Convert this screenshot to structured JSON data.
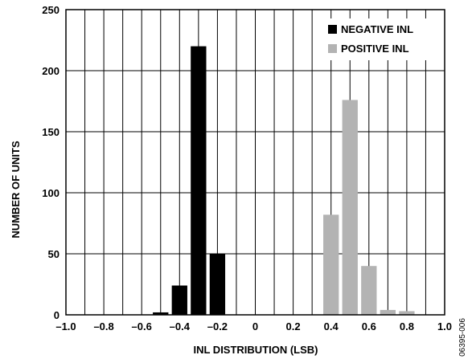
{
  "chart_data": {
    "type": "bar",
    "xlabel": "INL DISTRIBUTION (LSB)",
    "ylabel": "NUMBER OF UNITS",
    "xlim": [
      -1.0,
      1.0
    ],
    "ylim": [
      0,
      250
    ],
    "x_ticks": [
      -1.0,
      -0.8,
      -0.6,
      -0.4,
      -0.2,
      0,
      0.2,
      0.4,
      0.6,
      0.8,
      1.0
    ],
    "x_tick_labels": [
      "–1.0",
      "–0.8",
      "–0.6",
      "–0.4",
      "–0.2",
      "0",
      "0.2",
      "0.4",
      "0.6",
      "0.8",
      "1.0"
    ],
    "y_ticks": [
      0,
      50,
      100,
      150,
      200,
      250
    ],
    "y_tick_labels": [
      "0",
      "50",
      "100",
      "150",
      "200",
      "250"
    ],
    "bin_width": 0.1,
    "grid": true,
    "legend_position": "top-right",
    "series": [
      {
        "name": "NEGATIVE INL",
        "color": "#000000",
        "bins": [
          {
            "x": -0.5,
            "value": 2
          },
          {
            "x": -0.4,
            "value": 24
          },
          {
            "x": -0.3,
            "value": 220
          },
          {
            "x": -0.2,
            "value": 50
          }
        ]
      },
      {
        "name": "POSITIVE INL",
        "color": "#b3b3b3",
        "bins": [
          {
            "x": 0.4,
            "value": 82
          },
          {
            "x": 0.5,
            "value": 176
          },
          {
            "x": 0.6,
            "value": 40
          },
          {
            "x": 0.7,
            "value": 4
          },
          {
            "x": 0.8,
            "value": 3
          }
        ]
      }
    ]
  },
  "figure_code": "06395-006"
}
